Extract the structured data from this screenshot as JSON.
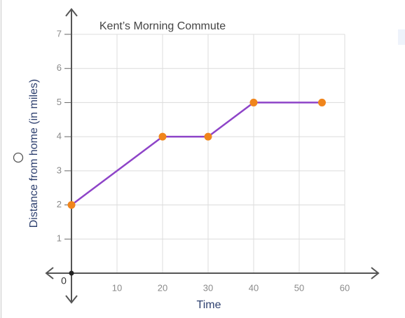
{
  "chart_data": {
    "type": "line",
    "title": "Kent’s Morning Commute",
    "x_label": "Time",
    "y_label": "Distance from home (in miles)",
    "x": [
      0,
      20,
      30,
      40,
      55
    ],
    "values": [
      2,
      4,
      4,
      5,
      5
    ],
    "line_color": "#8e44c8",
    "marker_color": "#f0851c",
    "xlim": [
      0,
      60
    ],
    "xticks": [
      0,
      10,
      20,
      30,
      40,
      50,
      60
    ],
    "ylim": [
      0,
      7
    ],
    "yticks": [
      1,
      2,
      3,
      4,
      5,
      6,
      7
    ],
    "grid": true
  }
}
